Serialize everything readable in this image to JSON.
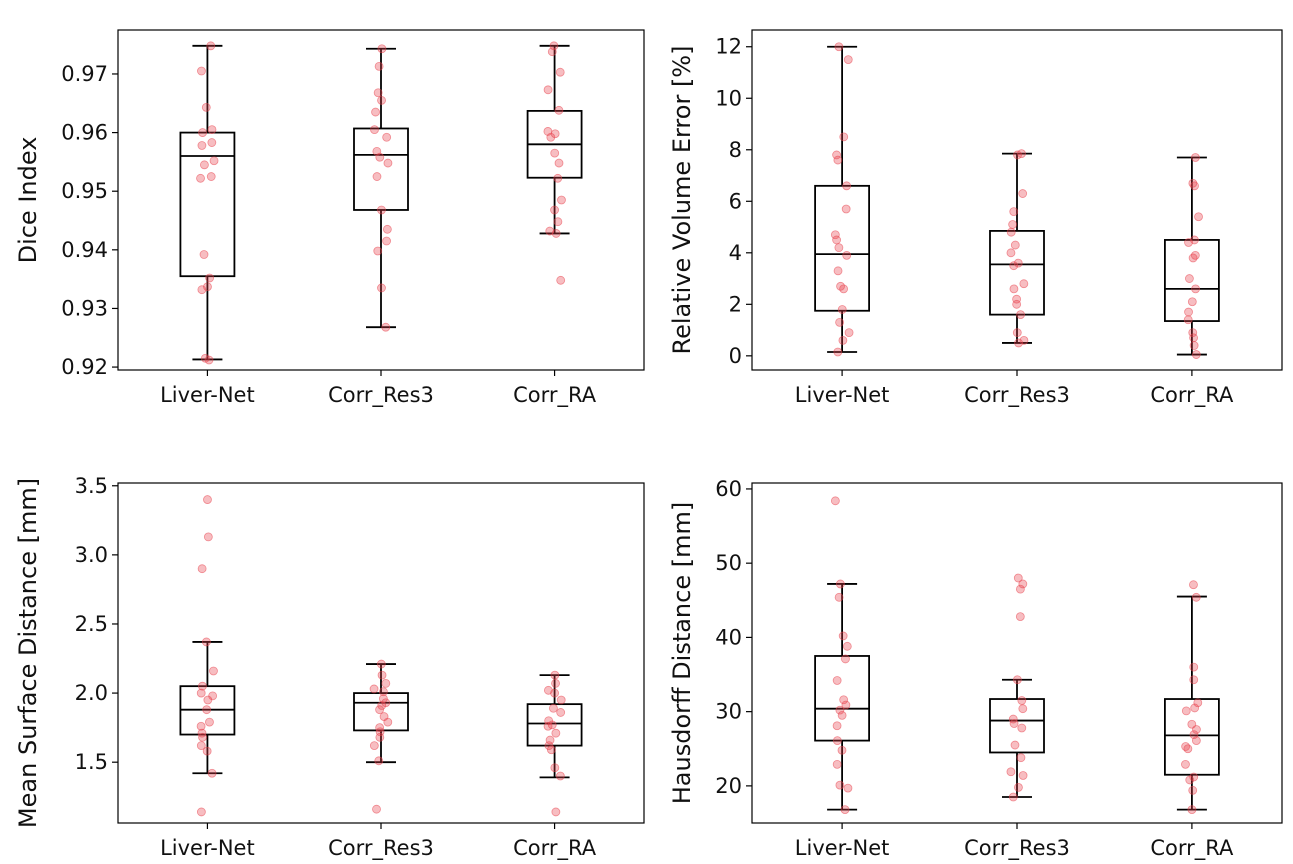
{
  "colors": {
    "box": "#000000",
    "points": "#e8424d",
    "background": "#ffffff"
  },
  "chart_data": [
    {
      "type": "box",
      "title": "",
      "xlabel": "",
      "ylabel": "Dice Index",
      "categories": [
        "Liver-Net",
        "Corr_Res3",
        "Corr_RA"
      ],
      "ylim": [
        0.9195,
        0.9775
      ],
      "yticks": [
        0.92,
        0.93,
        0.94,
        0.95,
        0.96,
        0.97
      ],
      "ytick_labels": [
        "0.92",
        "0.93",
        "0.94",
        "0.95",
        "0.96",
        "0.97"
      ],
      "grid": false,
      "boxes": [
        {
          "whisker_low": 0.9213,
          "q1": 0.9355,
          "median": 0.956,
          "q3": 0.96,
          "whisker_high": 0.9748
        },
        {
          "whisker_low": 0.9268,
          "q1": 0.9468,
          "median": 0.9562,
          "q3": 0.9607,
          "whisker_high": 0.9743
        },
        {
          "whisker_low": 0.9428,
          "q1": 0.9523,
          "median": 0.958,
          "q3": 0.9637,
          "whisker_high": 0.9748
        }
      ],
      "points": [
        [
          0.9748,
          0.9705,
          0.9643,
          0.9605,
          0.96,
          0.9583,
          0.9578,
          0.9552,
          0.9545,
          0.9525,
          0.9522,
          0.9392,
          0.9352,
          0.9337,
          0.9332,
          0.9215,
          0.9212
        ],
        [
          0.9743,
          0.9713,
          0.9668,
          0.9655,
          0.9635,
          0.9605,
          0.9592,
          0.9568,
          0.9558,
          0.9548,
          0.9525,
          0.9468,
          0.9435,
          0.9415,
          0.9398,
          0.9335,
          0.9268
        ],
        [
          0.9748,
          0.9738,
          0.9703,
          0.9673,
          0.9638,
          0.9602,
          0.9598,
          0.9592,
          0.9565,
          0.9548,
          0.9522,
          0.9485,
          0.9468,
          0.9448,
          0.9432,
          0.9428,
          0.9348
        ]
      ]
    },
    {
      "type": "box",
      "title": "",
      "xlabel": "",
      "ylabel": "Relative Volume Error [%]",
      "categories": [
        "Liver-Net",
        "Corr_Res3",
        "Corr_RA"
      ],
      "ylim": [
        -0.55,
        12.65
      ],
      "yticks": [
        0,
        2,
        4,
        6,
        8,
        10,
        12
      ],
      "ytick_labels": [
        "0",
        "2",
        "4",
        "6",
        "8",
        "10",
        "12"
      ],
      "grid": false,
      "boxes": [
        {
          "whisker_low": 0.15,
          "q1": 1.75,
          "median": 3.95,
          "q3": 6.6,
          "whisker_high": 12.0
        },
        {
          "whisker_low": 0.5,
          "q1": 1.6,
          "median": 3.55,
          "q3": 4.85,
          "whisker_high": 7.85
        },
        {
          "whisker_low": 0.05,
          "q1": 1.35,
          "median": 2.6,
          "q3": 4.5,
          "whisker_high": 7.7
        }
      ],
      "points": [
        [
          12.0,
          11.5,
          8.5,
          7.8,
          7.6,
          6.6,
          5.7,
          4.7,
          4.5,
          4.2,
          3.9,
          3.3,
          2.7,
          2.6,
          1.8,
          1.3,
          0.9,
          0.6,
          0.15
        ],
        [
          7.85,
          7.8,
          6.3,
          5.6,
          5.1,
          4.8,
          4.3,
          4.0,
          3.6,
          3.5,
          2.8,
          2.6,
          2.2,
          2.0,
          1.6,
          0.9,
          0.6,
          0.5
        ],
        [
          7.7,
          6.7,
          6.6,
          5.4,
          4.5,
          4.4,
          3.9,
          3.8,
          3.0,
          2.6,
          2.1,
          1.7,
          1.4,
          0.9,
          0.7,
          0.4,
          0.05
        ]
      ]
    },
    {
      "type": "box",
      "title": "",
      "xlabel": "",
      "ylabel": "Mean Surface Distance [mm]",
      "categories": [
        "Liver-Net",
        "Corr_Res3",
        "Corr_RA"
      ],
      "ylim": [
        1.06,
        3.52
      ],
      "yticks": [
        1.5,
        2.0,
        2.5,
        3.0,
        3.5
      ],
      "ytick_labels": [
        "1.5",
        "2.0",
        "2.5",
        "3.0",
        "3.5"
      ],
      "grid": false,
      "boxes": [
        {
          "whisker_low": 1.42,
          "q1": 1.7,
          "median": 1.88,
          "q3": 2.05,
          "whisker_high": 2.37
        },
        {
          "whisker_low": 1.5,
          "q1": 1.73,
          "median": 1.93,
          "q3": 2.0,
          "whisker_high": 2.21
        },
        {
          "whisker_low": 1.39,
          "q1": 1.62,
          "median": 1.78,
          "q3": 1.92,
          "whisker_high": 2.13
        }
      ],
      "points": [
        [
          3.4,
          3.13,
          2.9,
          2.37,
          2.16,
          2.05,
          2.0,
          1.98,
          1.95,
          1.88,
          1.79,
          1.76,
          1.71,
          1.68,
          1.62,
          1.58,
          1.42,
          1.14
        ],
        [
          2.21,
          2.13,
          2.07,
          2.03,
          2.01,
          1.96,
          1.93,
          1.91,
          1.88,
          1.83,
          1.79,
          1.75,
          1.72,
          1.68,
          1.62,
          1.51,
          1.16
        ],
        [
          2.13,
          2.07,
          2.02,
          2.0,
          1.95,
          1.89,
          1.86,
          1.8,
          1.77,
          1.76,
          1.71,
          1.66,
          1.62,
          1.59,
          1.46,
          1.4,
          1.14
        ]
      ]
    },
    {
      "type": "box",
      "title": "",
      "xlabel": "",
      "ylabel": "Hausdorff Distance [mm]",
      "categories": [
        "Liver-Net",
        "Corr_Res3",
        "Corr_RA"
      ],
      "ylim": [
        15.0,
        60.8
      ],
      "yticks": [
        20,
        30,
        40,
        50,
        60
      ],
      "ytick_labels": [
        "20",
        "30",
        "40",
        "50",
        "60"
      ],
      "grid": false,
      "boxes": [
        {
          "whisker_low": 16.8,
          "q1": 26.1,
          "median": 30.4,
          "q3": 37.5,
          "whisker_high": 47.2
        },
        {
          "whisker_low": 18.5,
          "q1": 24.5,
          "median": 28.8,
          "q3": 31.7,
          "whisker_high": 34.3
        },
        {
          "whisker_low": 16.8,
          "q1": 21.5,
          "median": 26.8,
          "q3": 31.7,
          "whisker_high": 45.5
        }
      ],
      "points": [
        [
          58.4,
          47.2,
          45.4,
          40.2,
          38.8,
          37.1,
          34.2,
          31.6,
          30.9,
          30.2,
          29.5,
          28.1,
          26.1,
          24.8,
          22.9,
          20.1,
          19.7,
          16.8
        ],
        [
          48.0,
          47.2,
          46.5,
          42.8,
          34.3,
          31.5,
          30.4,
          29.0,
          28.4,
          27.8,
          25.5,
          23.8,
          21.9,
          21.4,
          19.8,
          18.5
        ],
        [
          47.1,
          45.4,
          36.0,
          34.3,
          31.2,
          30.5,
          30.1,
          28.3,
          27.6,
          26.9,
          26.1,
          25.3,
          25.0,
          22.9,
          21.2,
          20.8,
          19.4,
          16.8
        ]
      ]
    }
  ]
}
